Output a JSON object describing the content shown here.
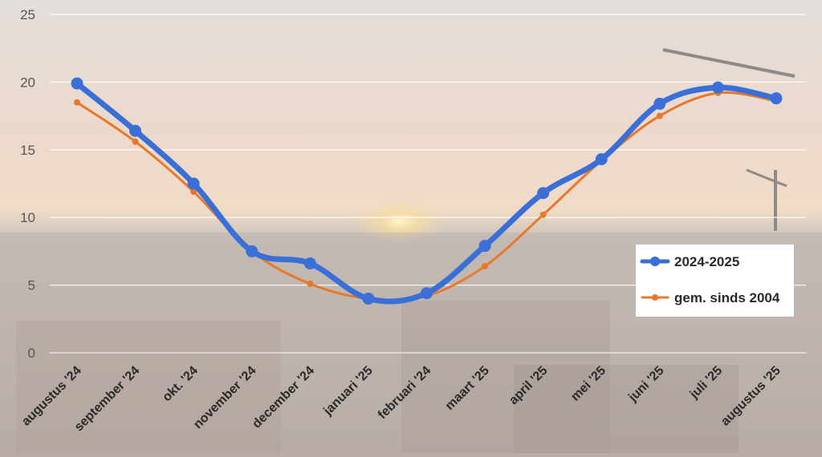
{
  "chart_data": {
    "type": "line",
    "categories": [
      "augustus '24",
      "september '24",
      "okt. '24",
      "november '24",
      "december '24",
      "januari '25",
      "februari '24",
      "maart '25",
      "april '25",
      "mei '25",
      "juni '25",
      "juli '25",
      "augustus '25"
    ],
    "series": [
      {
        "name": "2024-2025",
        "values": [
          19.9,
          16.4,
          12.5,
          7.5,
          6.6,
          4.0,
          4.4,
          7.9,
          11.8,
          14.3,
          18.4,
          19.6,
          18.8
        ],
        "color": "#3a6fd8"
      },
      {
        "name": "gem. sinds 2004",
        "values": [
          18.5,
          15.6,
          11.9,
          7.5,
          5.1,
          4.0,
          4.2,
          6.4,
          10.2,
          14.2,
          17.5,
          19.2,
          18.6
        ],
        "color": "#e8782a"
      }
    ],
    "yticks": [
      0,
      5,
      10,
      15,
      20,
      25
    ],
    "ylim": [
      0,
      25
    ],
    "grid": true,
    "legend_position": "right",
    "title": "",
    "xlabel": "",
    "ylabel": ""
  }
}
